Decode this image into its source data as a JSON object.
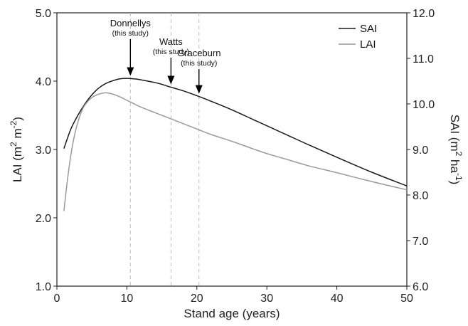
{
  "chart_data": {
    "type": "line",
    "title": "",
    "xlabel": "Stand age (years)",
    "ylabel_left": {
      "main": "LAI (m",
      "sup1": "2",
      "mid": " m",
      "sup2": "-2",
      "end": ")"
    },
    "ylabel_right": {
      "main": "SAI (m",
      "sup1": "2",
      "mid": " ha",
      "sup2": "-1",
      "end": ")"
    },
    "xlim": [
      0,
      50
    ],
    "ylim_left": [
      1.0,
      5.0
    ],
    "ylim_right": [
      6.0,
      12.0
    ],
    "x_ticks": [
      "0",
      "10",
      "20",
      "30",
      "40",
      "50"
    ],
    "y_left_ticks": [
      "1.0",
      "2.0",
      "3.0",
      "4.0",
      "5.0"
    ],
    "y_right_ticks": [
      "6.0",
      "7.0",
      "8.0",
      "9.0",
      "10.0",
      "11.0",
      "12.0"
    ],
    "legend_position": "top-right",
    "grid": false,
    "series": [
      {
        "name": "SAI",
        "axis": "right",
        "color": "#1a1a1a",
        "x": [
          1,
          2,
          3,
          4,
          5,
          6,
          7,
          8,
          9,
          10,
          11,
          12,
          13,
          14,
          15,
          16,
          18,
          20,
          22,
          25,
          28,
          30,
          33,
          36,
          40,
          45,
          50
        ],
        "y": [
          9.02,
          9.45,
          9.75,
          10.0,
          10.2,
          10.35,
          10.45,
          10.51,
          10.55,
          10.56,
          10.55,
          10.53,
          10.5,
          10.47,
          10.43,
          10.38,
          10.29,
          10.18,
          10.06,
          9.87,
          9.66,
          9.52,
          9.31,
          9.1,
          8.83,
          8.5,
          8.2
        ]
      },
      {
        "name": "LAI",
        "axis": "left",
        "color": "#9a9a9a",
        "x": [
          1,
          1.5,
          2,
          2.5,
          3,
          3.5,
          4,
          5,
          6,
          7,
          8,
          9,
          10,
          11,
          12,
          14,
          16,
          18,
          20,
          22,
          25,
          28,
          30,
          33,
          36,
          40,
          45,
          50
        ],
        "y": [
          2.1,
          2.55,
          2.92,
          3.2,
          3.4,
          3.55,
          3.65,
          3.76,
          3.81,
          3.83,
          3.81,
          3.77,
          3.72,
          3.67,
          3.62,
          3.54,
          3.46,
          3.38,
          3.3,
          3.22,
          3.12,
          3.01,
          2.94,
          2.85,
          2.76,
          2.66,
          2.53,
          2.41
        ]
      }
    ],
    "annotations": [
      {
        "label": "Donnellys",
        "sub": "(this study)",
        "x": 10.5
      },
      {
        "label": "Watts",
        "sub": "(this study)",
        "x": 16.3
      },
      {
        "label": "Graceburn",
        "sub": "(this study)",
        "x": 20.3
      }
    ]
  }
}
